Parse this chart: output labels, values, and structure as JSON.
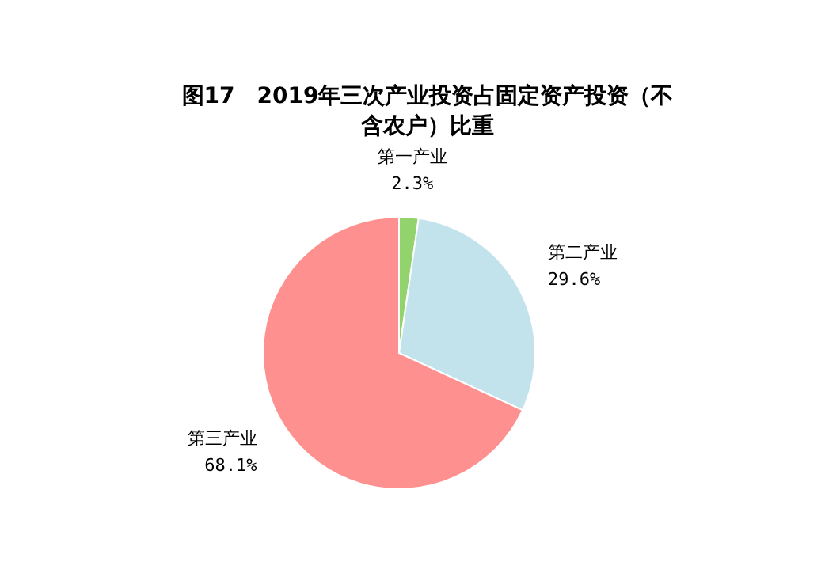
{
  "chart_data": {
    "type": "pie",
    "title": "图17　2019年三次产业投资占固定资产投资（不含农户）比重",
    "categories": [
      "第一产业",
      "第二产业",
      "第三产业"
    ],
    "values": [
      2.3,
      29.6,
      68.1
    ],
    "value_labels": [
      "2.3%",
      "29.6%",
      "68.1%"
    ],
    "colors": [
      "#92d36e",
      "#c3e3ec",
      "#ff9090"
    ]
  }
}
